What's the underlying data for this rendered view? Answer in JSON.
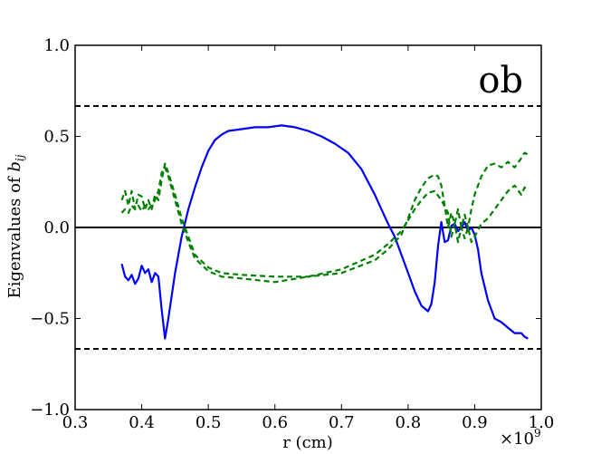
{
  "chart_data": {
    "type": "line",
    "title": "",
    "panel_label": "ob",
    "xlabel": "r (cm)",
    "ylabel_prefix": "Eigenvalues of ",
    "ylabel_symbol": "b",
    "ylabel_subscript": "ij",
    "x_multiplier": "×10",
    "x_multiplier_exp": "9",
    "xlim": [
      0.3,
      1.0
    ],
    "ylim": [
      -1.0,
      1.0
    ],
    "x_ticks": [
      0.3,
      0.4,
      0.5,
      0.6,
      0.7,
      0.8,
      0.9,
      1.0
    ],
    "x_tick_labels": [
      "0.3",
      "0.4",
      "0.5",
      "0.6",
      "0.7",
      "0.8",
      "0.9",
      "1.0"
    ],
    "y_ticks": [
      -1.0,
      -0.5,
      0.0,
      0.5,
      1.0
    ],
    "y_tick_labels": [
      "−1.0",
      "−0.5",
      "0.0",
      "0.5",
      "1.0"
    ],
    "grid": false,
    "reference_lines": [
      {
        "y": 0.6667,
        "style": "dashed",
        "color": "#000000"
      },
      {
        "y": 0.0,
        "style": "solid",
        "color": "#000000"
      },
      {
        "y": -0.6667,
        "style": "dashed",
        "color": "#000000"
      }
    ],
    "series": [
      {
        "color": "#0000ff",
        "style": "solid",
        "x": [
          0.37,
          0.375,
          0.38,
          0.385,
          0.39,
          0.395,
          0.4,
          0.405,
          0.41,
          0.415,
          0.42,
          0.425,
          0.43,
          0.435,
          0.44,
          0.45,
          0.46,
          0.47,
          0.48,
          0.49,
          0.5,
          0.51,
          0.52,
          0.53,
          0.55,
          0.57,
          0.59,
          0.61,
          0.63,
          0.65,
          0.67,
          0.69,
          0.71,
          0.73,
          0.74,
          0.75,
          0.76,
          0.77,
          0.78,
          0.79,
          0.8,
          0.81,
          0.82,
          0.83,
          0.835,
          0.84,
          0.845,
          0.85,
          0.855,
          0.86,
          0.865,
          0.87,
          0.875,
          0.88,
          0.885,
          0.89,
          0.895,
          0.9,
          0.905,
          0.91,
          0.92,
          0.93,
          0.94,
          0.95,
          0.96,
          0.97,
          0.975,
          0.98
        ],
        "y": [
          -0.2,
          -0.27,
          -0.29,
          -0.26,
          -0.31,
          -0.28,
          -0.21,
          -0.25,
          -0.23,
          -0.3,
          -0.25,
          -0.27,
          -0.45,
          -0.61,
          -0.5,
          -0.25,
          -0.05,
          0.1,
          0.22,
          0.33,
          0.42,
          0.48,
          0.51,
          0.53,
          0.54,
          0.55,
          0.55,
          0.56,
          0.55,
          0.53,
          0.5,
          0.46,
          0.41,
          0.32,
          0.25,
          0.18,
          0.1,
          0.02,
          -0.05,
          -0.15,
          -0.25,
          -0.35,
          -0.43,
          -0.46,
          -0.42,
          -0.3,
          -0.1,
          0.03,
          -0.08,
          -0.07,
          0.01,
          0.02,
          -0.02,
          0.0,
          0.03,
          -0.02,
          0.0,
          -0.04,
          -0.12,
          -0.25,
          -0.4,
          -0.5,
          -0.52,
          -0.55,
          -0.58,
          -0.58,
          -0.6,
          -0.61
        ]
      },
      {
        "color": "#008000",
        "style": "dashed",
        "x": [
          0.37,
          0.375,
          0.38,
          0.385,
          0.39,
          0.395,
          0.4,
          0.405,
          0.41,
          0.415,
          0.42,
          0.425,
          0.43,
          0.435,
          0.44,
          0.45,
          0.46,
          0.47,
          0.48,
          0.5,
          0.52,
          0.55,
          0.6,
          0.65,
          0.7,
          0.75,
          0.77,
          0.79,
          0.8,
          0.81,
          0.82,
          0.83,
          0.84,
          0.845,
          0.85,
          0.855,
          0.86,
          0.865,
          0.87,
          0.875,
          0.88,
          0.885,
          0.89,
          0.895,
          0.9,
          0.91,
          0.92,
          0.93,
          0.94,
          0.95,
          0.96,
          0.97,
          0.975,
          0.98
        ],
        "y": [
          0.15,
          0.2,
          0.12,
          0.2,
          0.1,
          0.18,
          0.17,
          0.1,
          0.15,
          0.1,
          0.18,
          0.15,
          0.26,
          0.35,
          0.3,
          0.18,
          0.05,
          -0.05,
          -0.15,
          -0.22,
          -0.25,
          -0.26,
          -0.27,
          -0.27,
          -0.25,
          -0.18,
          -0.12,
          -0.04,
          0.05,
          0.15,
          0.22,
          0.27,
          0.29,
          0.28,
          0.23,
          0.12,
          0.0,
          0.08,
          0.02,
          0.1,
          0.0,
          0.07,
          0.0,
          0.1,
          0.18,
          0.28,
          0.34,
          0.35,
          0.33,
          0.36,
          0.33,
          0.38,
          0.41,
          0.4
        ]
      },
      {
        "color": "#008000",
        "style": "dashed",
        "x": [
          0.37,
          0.375,
          0.38,
          0.385,
          0.39,
          0.395,
          0.4,
          0.405,
          0.41,
          0.415,
          0.42,
          0.425,
          0.43,
          0.435,
          0.44,
          0.45,
          0.46,
          0.47,
          0.48,
          0.5,
          0.52,
          0.55,
          0.6,
          0.65,
          0.7,
          0.75,
          0.77,
          0.79,
          0.8,
          0.81,
          0.82,
          0.83,
          0.84,
          0.85,
          0.86,
          0.865,
          0.87,
          0.875,
          0.88,
          0.885,
          0.89,
          0.895,
          0.9,
          0.91,
          0.92,
          0.93,
          0.94,
          0.95,
          0.96,
          0.97,
          0.975,
          0.98
        ],
        "y": [
          0.08,
          0.1,
          0.08,
          0.12,
          0.1,
          0.12,
          0.09,
          0.12,
          0.1,
          0.12,
          0.15,
          0.2,
          0.3,
          0.33,
          0.28,
          0.15,
          0.02,
          -0.08,
          -0.17,
          -0.24,
          -0.27,
          -0.28,
          -0.3,
          -0.27,
          -0.23,
          -0.15,
          -0.09,
          -0.02,
          0.04,
          0.1,
          0.15,
          0.19,
          0.2,
          0.15,
          0.08,
          -0.05,
          0.02,
          -0.08,
          0.0,
          -0.06,
          0.0,
          -0.08,
          -0.05,
          0.02,
          0.05,
          0.1,
          0.15,
          0.2,
          0.23,
          0.18,
          0.22,
          0.2
        ]
      }
    ]
  }
}
